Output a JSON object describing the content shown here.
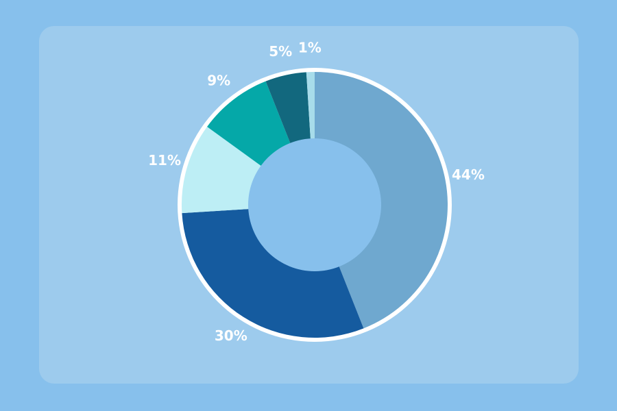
{
  "chart_data": {
    "type": "donut",
    "values": [
      44,
      30,
      11,
      9,
      5,
      1
    ],
    "value_labels": [
      "44%",
      "30%",
      "11%",
      "9%",
      "5%",
      "1%"
    ],
    "colors": [
      "#6fa8cf",
      "#155b9f",
      "#bdeef5",
      "#05a8a8",
      "#12687e",
      "#a7dcea"
    ]
  }
}
